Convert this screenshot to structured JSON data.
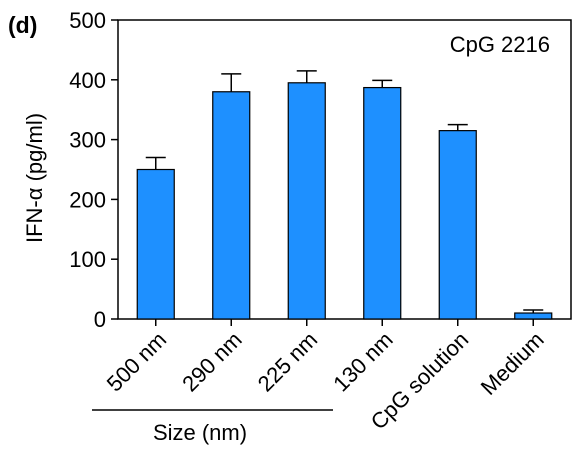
{
  "panel_label": "(d)",
  "chart_data": {
    "type": "bar",
    "annotation": "CpG 2216",
    "ylabel": "IFN-α (pg/ml)",
    "group_label": "Size (nm)",
    "categories": [
      "500 nm",
      "290 nm",
      "225 nm",
      "130 nm",
      "CpG solution",
      "Medium"
    ],
    "values": [
      250,
      380,
      395,
      387,
      315,
      10
    ],
    "errors": [
      20,
      30,
      20,
      12,
      10,
      5
    ],
    "yticks": [
      "0",
      "100",
      "200",
      "300",
      "400",
      "500"
    ],
    "ylim": [
      0,
      500
    ],
    "bar_color": "#1E90FF",
    "grid": false
  }
}
